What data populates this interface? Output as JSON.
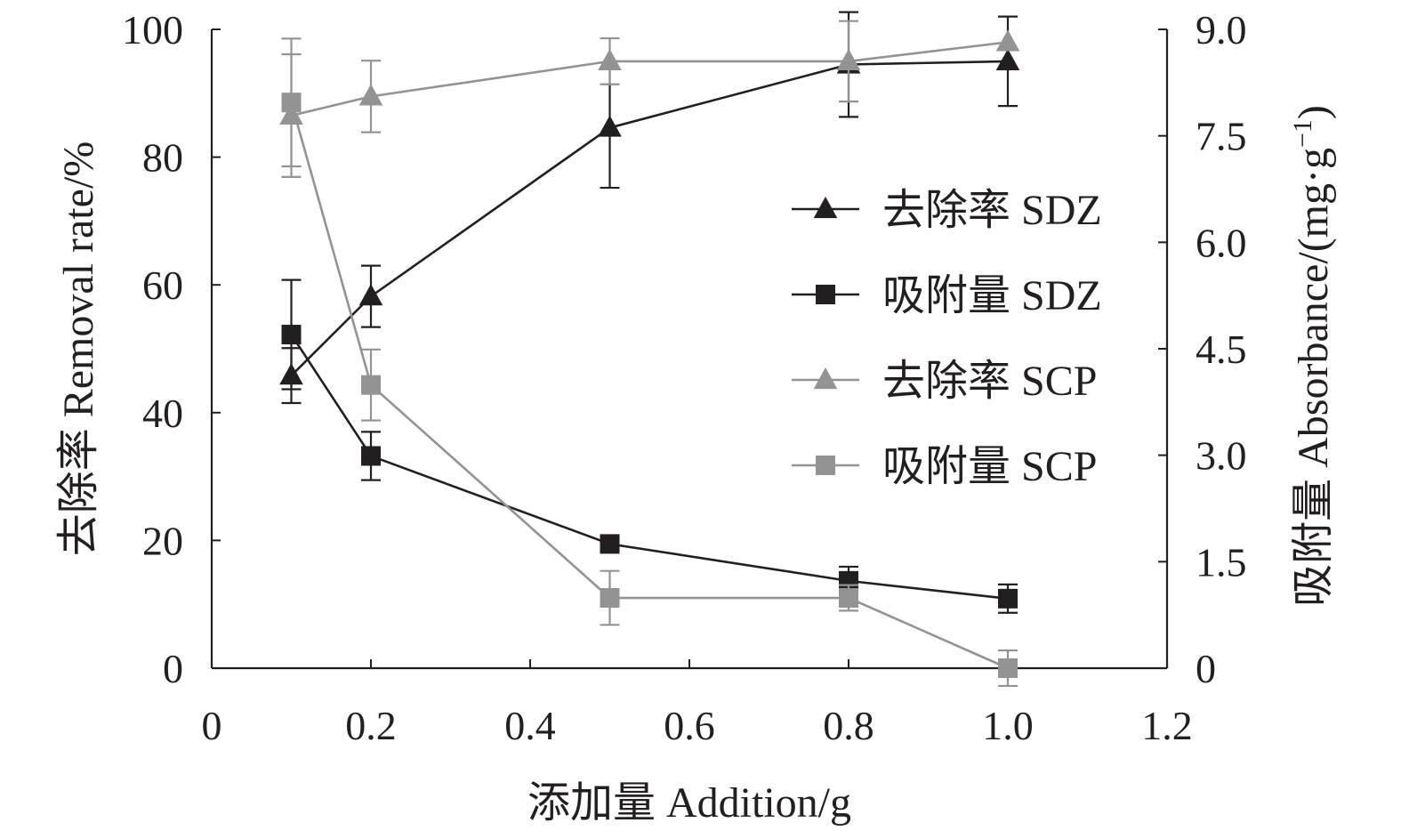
{
  "chart_data": {
    "type": "line",
    "xlabel": "添加量 Addition/g",
    "ylabel_left": "去除率 Removal rate/%",
    "ylabel_right_prefix": "吸附量 Absorbance/(mg·g",
    "ylabel_right_sup": "−1",
    "ylabel_right_suffix": ")",
    "xlim": [
      0,
      1.2
    ],
    "ylim_left": [
      0,
      100
    ],
    "ylim_right": [
      0,
      9.0
    ],
    "x_ticks": [
      "0",
      "0.2",
      "0.4",
      "0.6",
      "0.8",
      "1.0",
      "1.2"
    ],
    "x_tick_values": [
      0,
      0.2,
      0.4,
      0.6,
      0.8,
      1.0,
      1.2
    ],
    "y_left_ticks": [
      "0",
      "20",
      "40",
      "60",
      "80",
      "100"
    ],
    "y_left_tick_values": [
      0,
      20,
      40,
      60,
      80,
      100
    ],
    "y_right_ticks": [
      "0",
      "1.5",
      "3.0",
      "4.5",
      "6.0",
      "7.5",
      "9.0"
    ],
    "y_right_tick_values": [
      0,
      1.5,
      3.0,
      4.5,
      6.0,
      7.5,
      9.0
    ],
    "grid": false,
    "legend_position": "right-center",
    "x": [
      0.1,
      0.2,
      0.5,
      0.8,
      1.0
    ],
    "series": [
      {
        "name": "去除率 SDZ",
        "axis": "left",
        "marker": "triangle",
        "color": "#231f20",
        "values": [
          45.8,
          58.2,
          84.6,
          94.5,
          95.0
        ],
        "error": [
          4.3,
          4.8,
          9.4,
          8.2,
          7.0
        ]
      },
      {
        "name": "吸附量 SDZ",
        "axis": "right",
        "marker": "square",
        "color": "#231f20",
        "values": [
          4.7,
          2.99,
          1.75,
          1.23,
          0.98
        ],
        "error": [
          0.77,
          0.34,
          0.0,
          0.2,
          0.2
        ]
      },
      {
        "name": "去除率 SCP",
        "axis": "left",
        "marker": "triangle",
        "color": "#939393",
        "values": [
          86.5,
          89.5,
          95.0,
          95.0,
          98.0
        ],
        "error": [
          9.6,
          5.6,
          3.6,
          6.3,
          0.0
        ]
      },
      {
        "name": "吸附量 SCP",
        "axis": "right",
        "marker": "square",
        "color": "#939393",
        "values": [
          7.97,
          3.99,
          0.99,
          0.99,
          0.0
        ],
        "error": [
          0.9,
          0.5,
          0.38,
          0.18,
          0.25
        ]
      }
    ]
  }
}
